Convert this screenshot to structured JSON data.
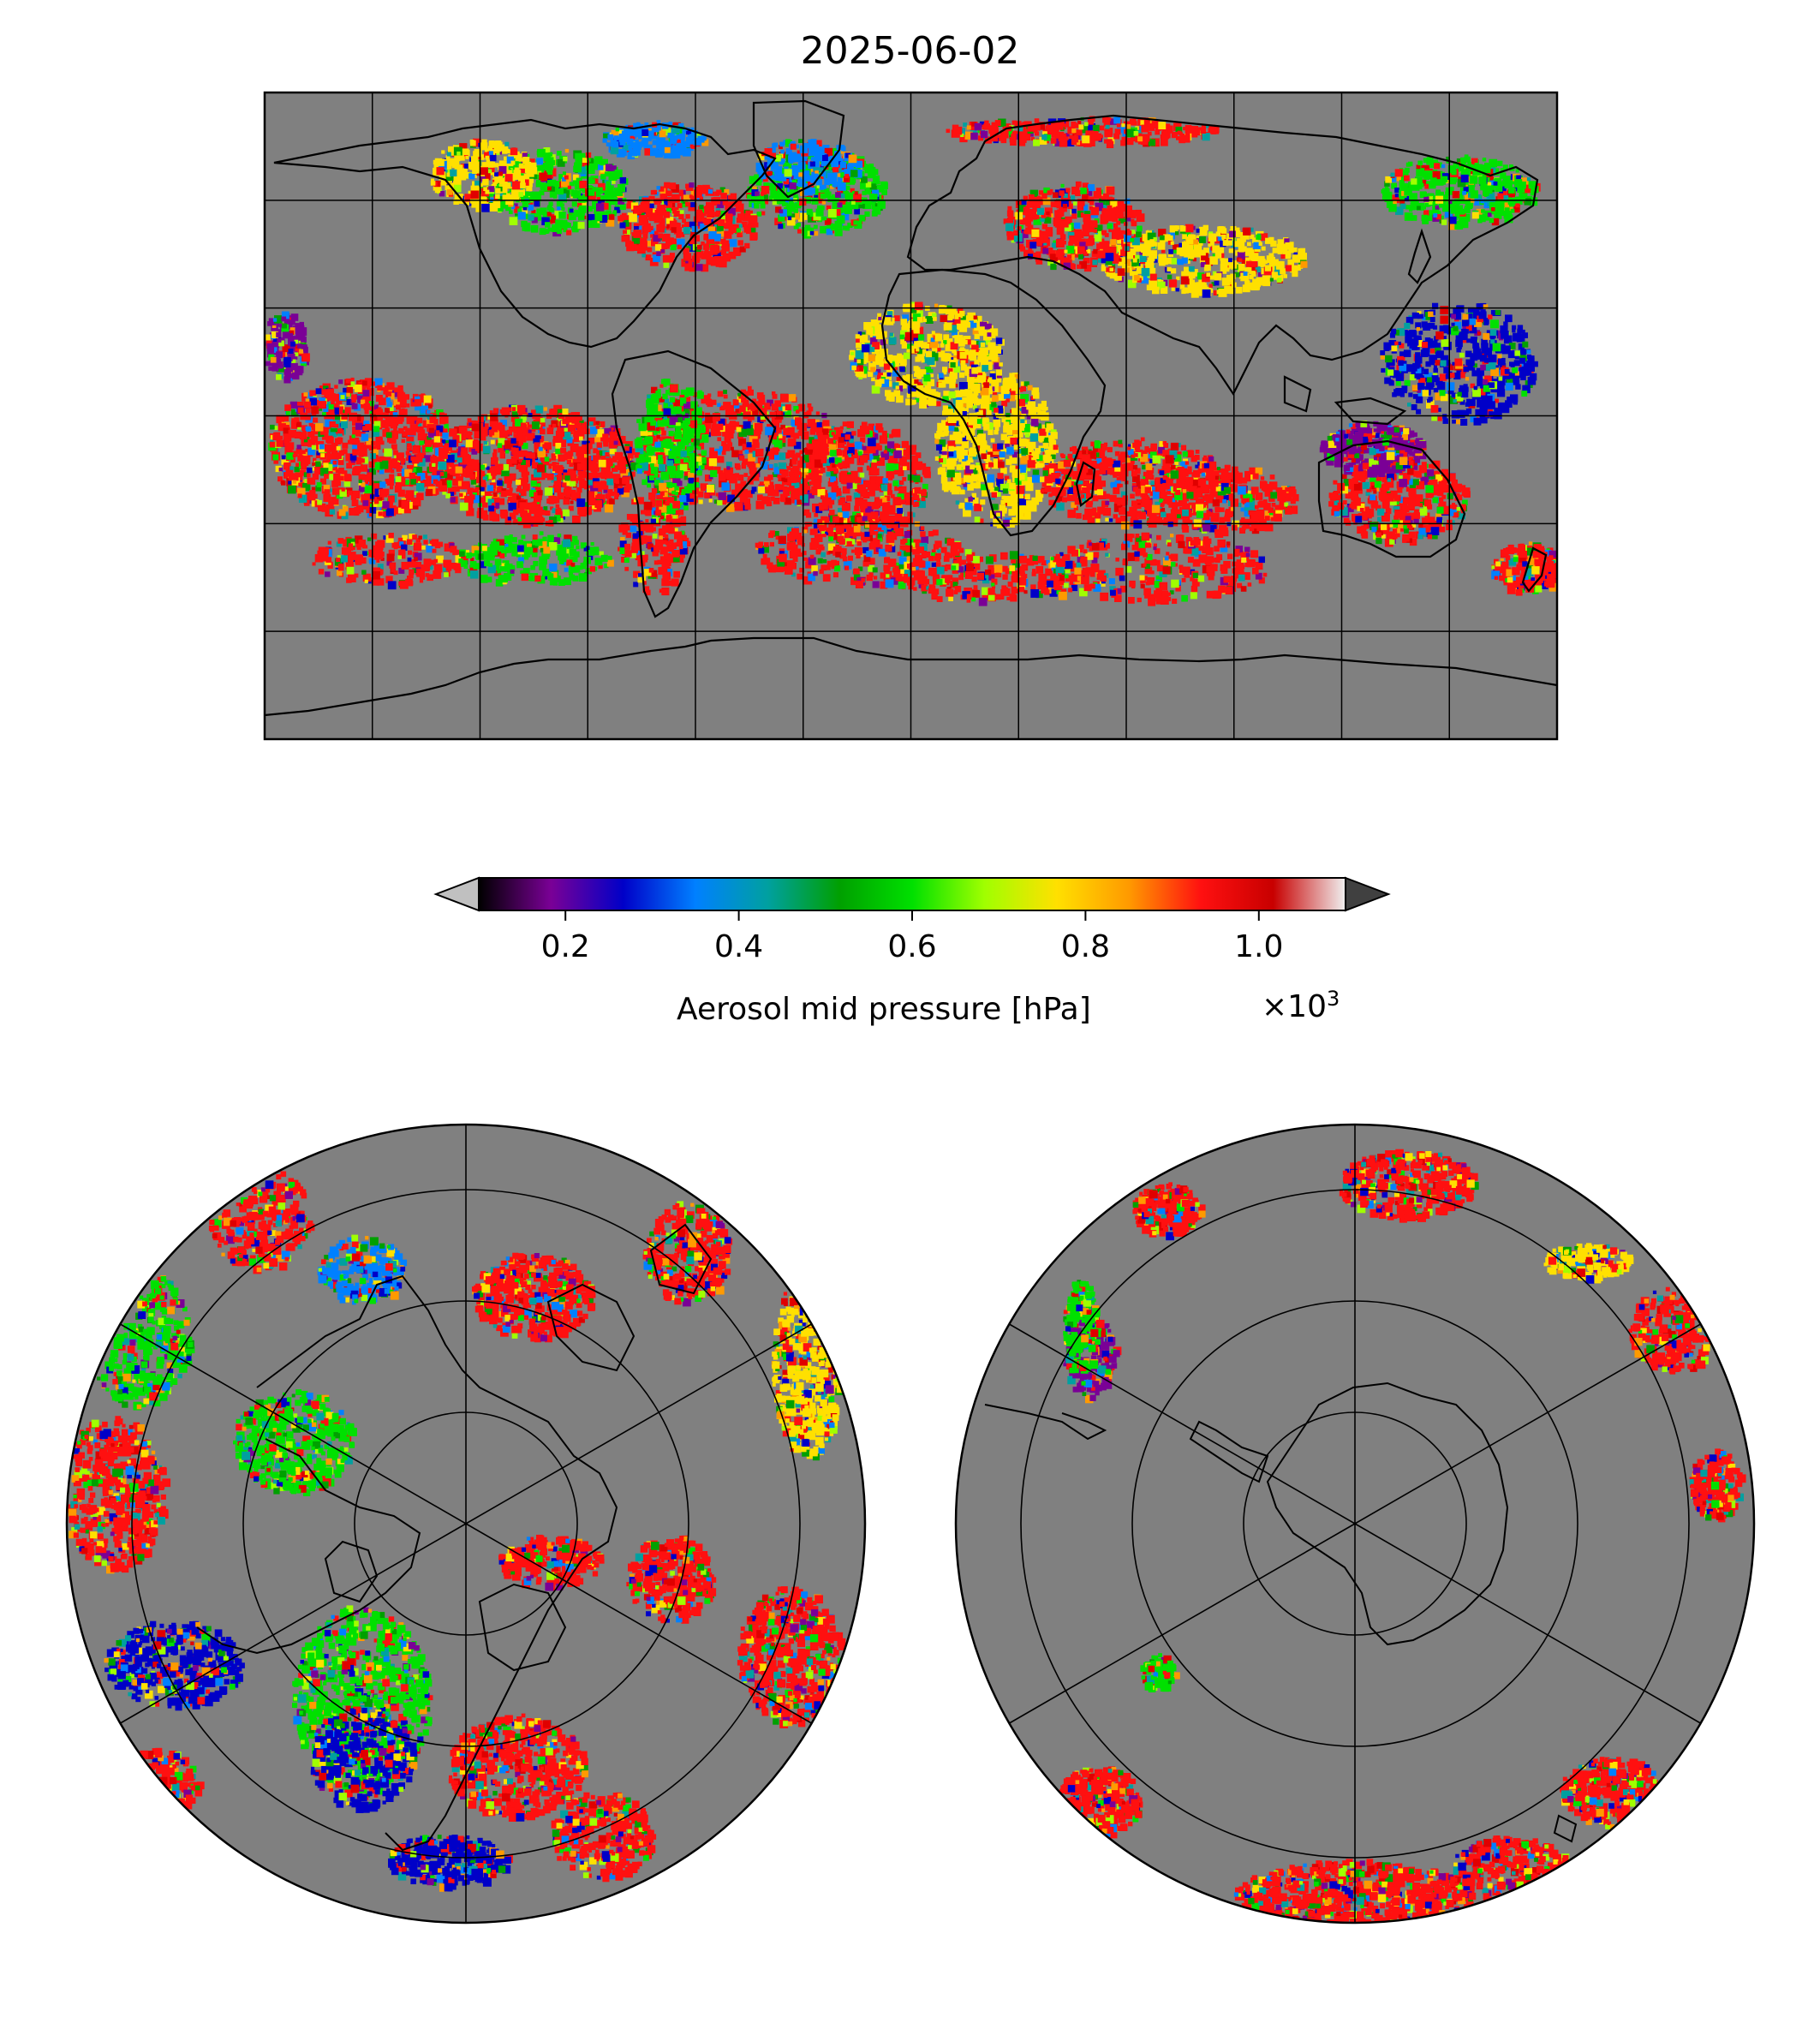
{
  "title": "2025-06-02",
  "colorbar": {
    "label": "Aerosol mid pressure [hPa]",
    "multiplier": "×10",
    "multiplier_exp": "3",
    "ticks": [
      "0.2",
      "0.4",
      "0.6",
      "0.8",
      "1.0"
    ],
    "tick_values": [
      0.2,
      0.4,
      0.6,
      0.8,
      1.0
    ],
    "range": [
      0.1,
      1.1
    ],
    "extend": "both",
    "colormap": [
      "#000000",
      "#7a0096",
      "#0000c8",
      "#0080ff",
      "#00a0a0",
      "#00a000",
      "#00e000",
      "#a0ff00",
      "#ffe000",
      "#ff9a00",
      "#ff1010",
      "#c80000",
      "#f0f0f0"
    ],
    "under_color": "#c0c0c0",
    "over_color": "#404040"
  },
  "maps": [
    {
      "name": "global",
      "projection": "plate-carree",
      "background": "#808080"
    },
    {
      "name": "north-polar",
      "projection": "north-polar-stereographic",
      "background": "#808080"
    },
    {
      "name": "south-polar",
      "projection": "south-polar-stereographic",
      "background": "#808080"
    }
  ]
}
